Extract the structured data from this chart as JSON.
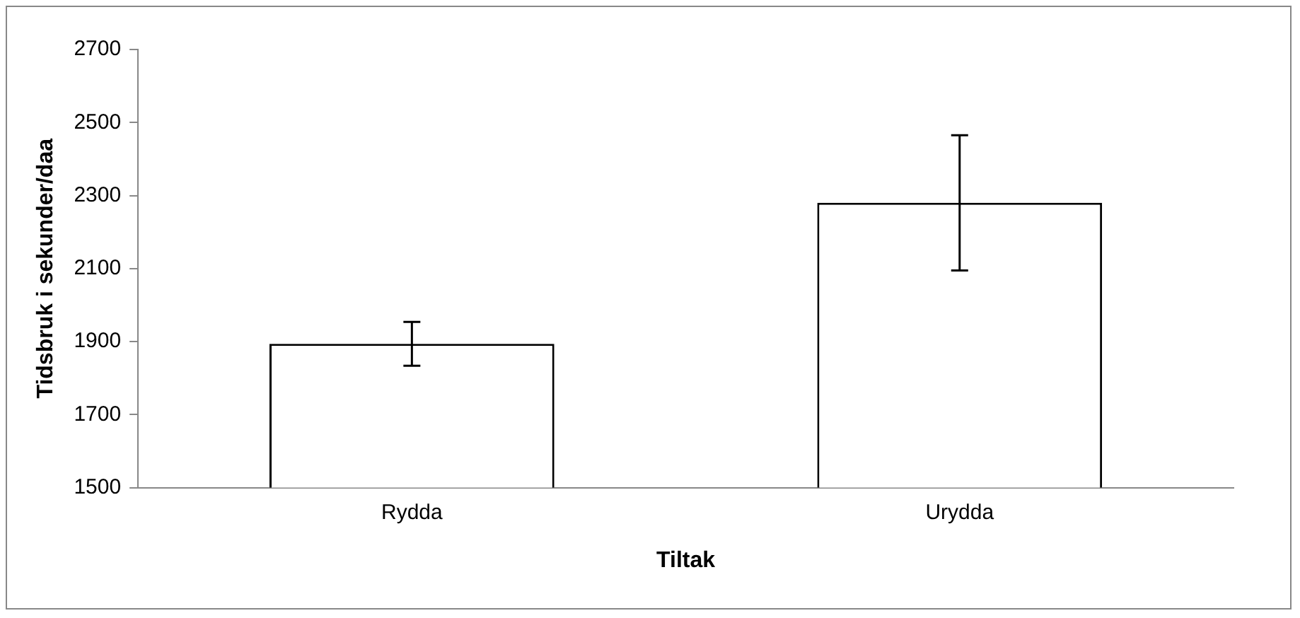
{
  "chart_data": {
    "type": "bar",
    "xlabel": "Tiltak",
    "ylabel": "Tidsbruk i sekunder/daa",
    "categories": [
      "Rydda",
      "Urydda"
    ],
    "values": [
      1894,
      2280
    ],
    "errors": [
      60,
      185
    ],
    "color": "#ffffff",
    "ylim": [
      1500,
      2700
    ],
    "yticks": [
      1500,
      1700,
      1900,
      2100,
      2300,
      2500,
      2700
    ],
    "grid": false,
    "legend": false
  }
}
